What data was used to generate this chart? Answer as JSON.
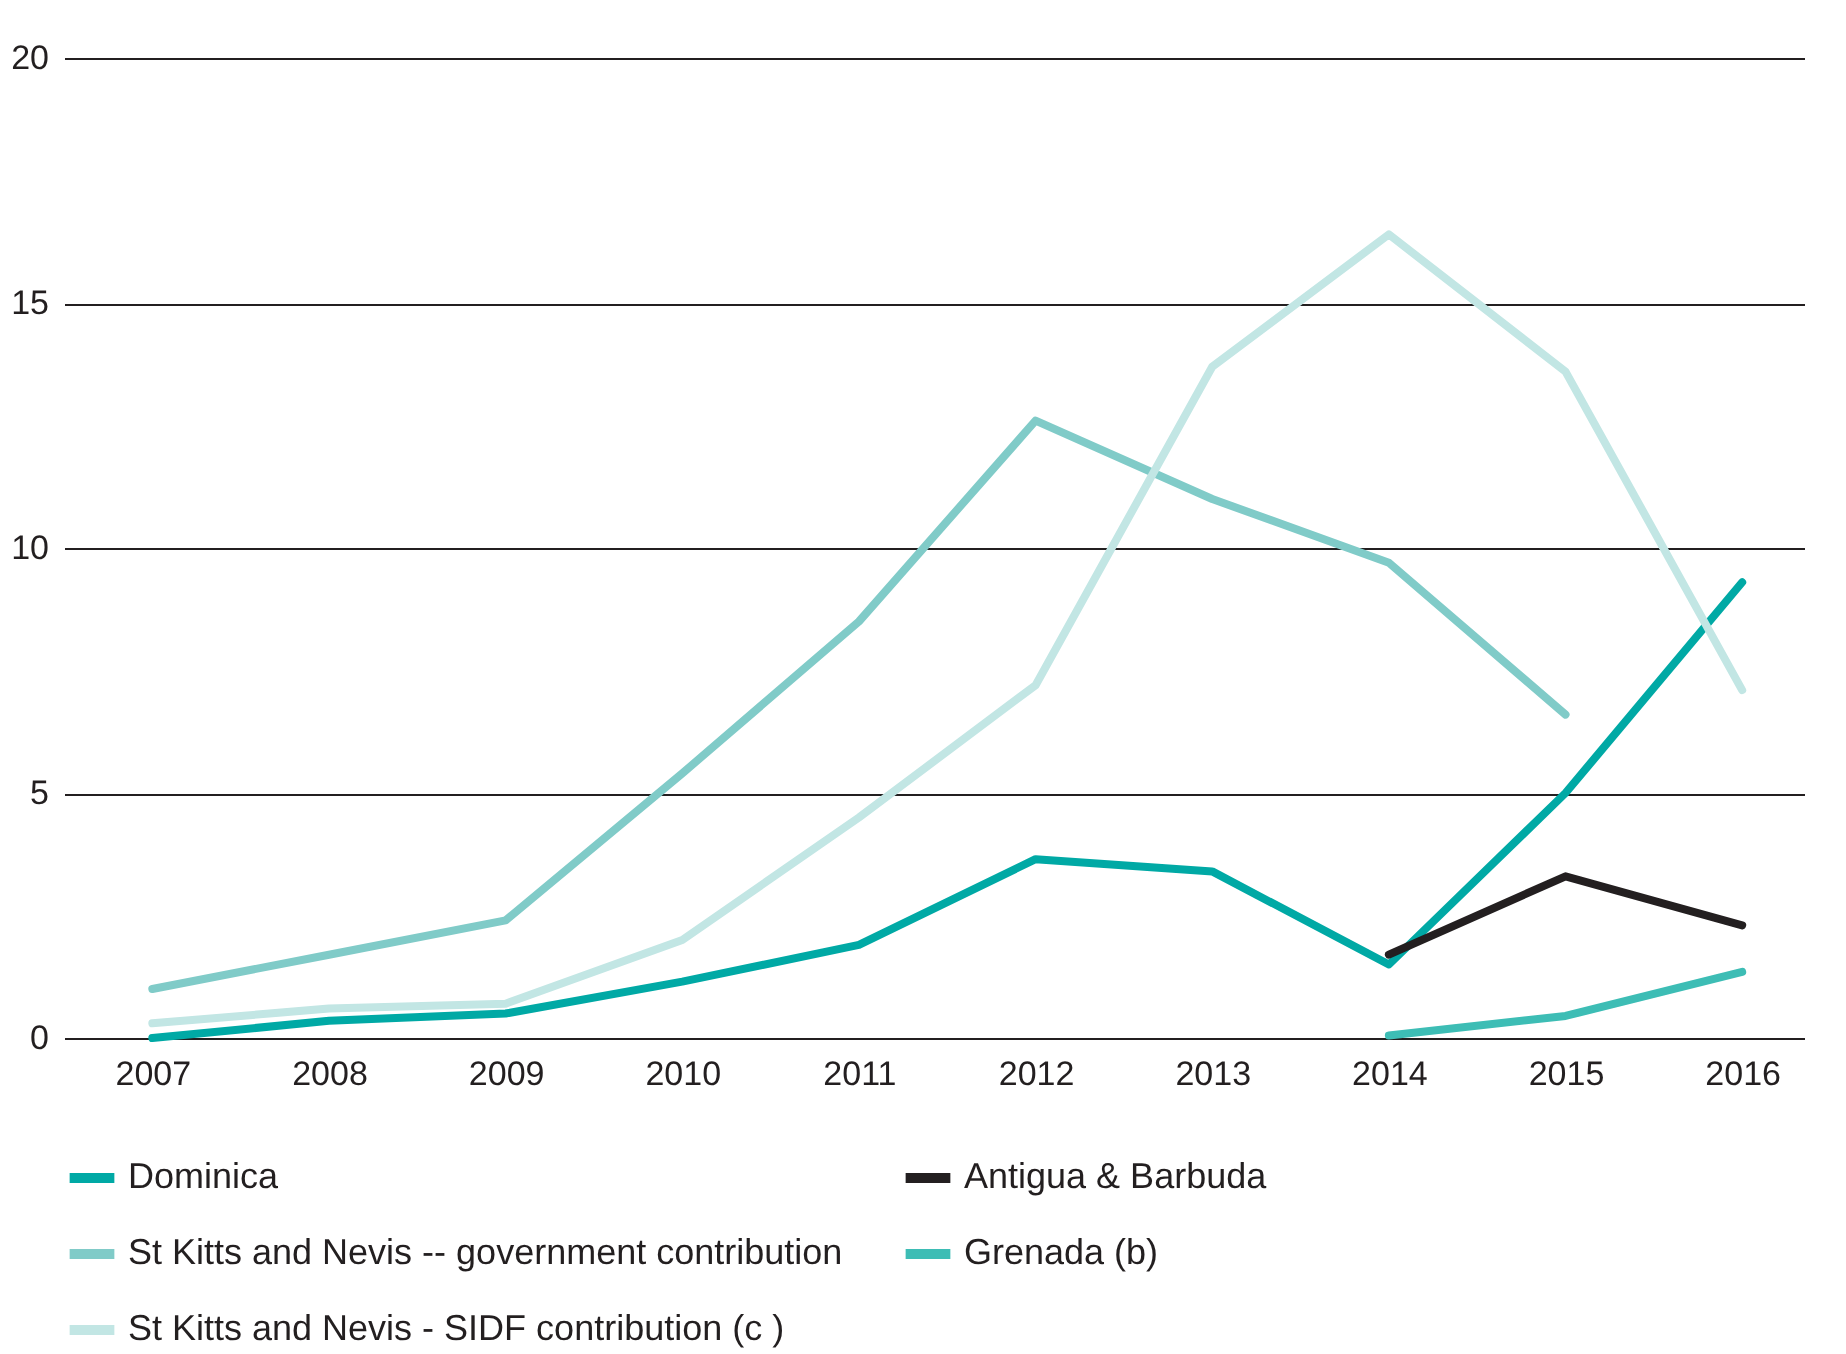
{
  "chart_data": {
    "type": "line",
    "x": [
      2007,
      2008,
      2009,
      2010,
      2011,
      2012,
      2013,
      2014,
      2015,
      2016
    ],
    "xlim": [
      2006.5,
      2016.35
    ],
    "xticks": [
      2007,
      2008,
      2009,
      2010,
      2011,
      2012,
      2013,
      2014,
      2015,
      2016
    ],
    "ylim": [
      0,
      20
    ],
    "yticks": [
      0,
      5,
      10,
      15,
      20
    ],
    "grid": "y",
    "legend": "bottom",
    "series": [
      {
        "name": "Dominica",
        "color": "#00a9a5",
        "values": [
          0,
          0.35,
          0.5,
          1.15,
          1.9,
          3.65,
          3.4,
          1.5,
          5.0,
          9.3
        ]
      },
      {
        "name": "Antigua & Barbuda",
        "color": "#231f20",
        "values": [
          null,
          null,
          null,
          null,
          null,
          null,
          null,
          1.7,
          3.3,
          2.3
        ]
      },
      {
        "name": "St Kitts and Nevis -- government contribution",
        "color": "#80cbc8",
        "values": [
          1.0,
          1.7,
          2.4,
          5.4,
          8.5,
          12.6,
          11.0,
          9.7,
          6.6,
          null
        ]
      },
      {
        "name": "Grenada (b)",
        "color": "#3dbdb5",
        "values": [
          null,
          null,
          null,
          null,
          null,
          null,
          null,
          0.05,
          0.45,
          1.35
        ]
      },
      {
        "name": "St Kitts and Nevis - SIDF contribution (c )",
        "color": "#c2e6e4",
        "values": [
          0.3,
          0.6,
          0.7,
          2.0,
          4.5,
          7.2,
          13.7,
          16.4,
          13.6,
          7.1
        ]
      }
    ]
  }
}
